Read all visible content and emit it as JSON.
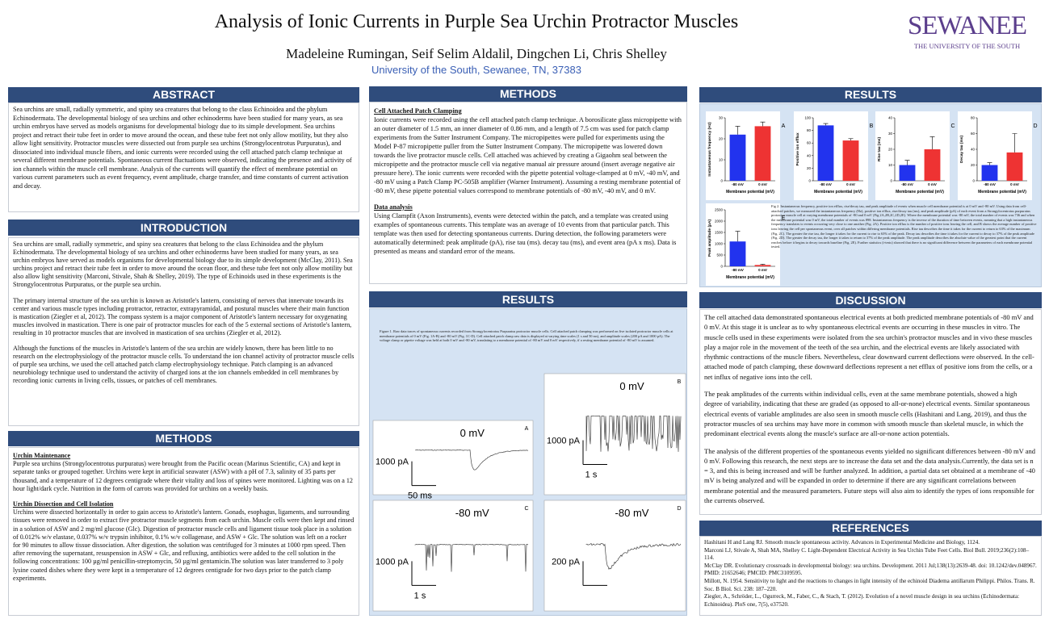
{
  "header": {
    "title": "Analysis of Ionic Currents in Purple Sea Urchin Protractor Muscles",
    "authors": "Madeleine Rumingan, Seif Selim Aldalil, Dingchen Li, Chris Shelley",
    "affiliation": "University of the South, Sewanee, TN, 37383",
    "logo": "SEWANEE",
    "logo_subtitle": "THE UNIVERSITY OF THE SOUTH"
  },
  "abstract": {
    "heading": "ABSTRACT",
    "text": "Sea urchins are small, radially symmetric, and spiny sea creatures that belong to the class Echinoidea and the phylum Echinodermata. The developmental biology of sea urchins and other echinoderms have been studied for many years, as sea urchin embryos have served as models organisms for developmental biology due to its simple development. Sea urchins project and retract their tube feet in order to move around the ocean, and these tube feet not only allow motility, but they also allow light sensitivity. Protractor muscles were dissected out from purple sea urchins (Strongylocentrotus Purpuratus), and dissociated into individual muscle fibers, and ionic currents were recorded using the cell attached patch clamp technique at several different membrane potentials. Spontaneous current fluctuations were observed, indicating the presence and activity of ion channels within the muscle cell membrane. Analysis of the currents will quantify the effect of membrane potential on various current parameters such as event frequency, event amplitude, charge transfer, and time constants of current activation and decay."
  },
  "introduction": {
    "heading": "INTRODUCTION",
    "paragraphs": [
      "Sea urchins are small, radially symmetric, and spiny sea creatures that belong to the class Echinoidea and the phylum Echinodermata. The developmental biology of sea urchins and other echinoderms have been studied for many years, as sea urchin embryos have served as models organisms for developmental biology due to its simple development (McClay, 2011). Sea urchins project and retract their tube feet in order to move around the ocean floor, and these tube feet not only allow motility but also allow light sensitivity (Marconi, Stivale, Shah & Shelley, 2019). The type of Echinoids used in these experiments is the Strongylocentrotus Purpuratus, or the purple sea urchin.",
      "The primary internal structure of the sea urchin is known as Aristotle's lantern, consisting of nerves that innervate towards its center and various muscle types including protractor, retractor, extrapyramidal, and postural muscles where their main function is mastication (Ziegler et al, 2012). The compass system is a major component of Aristotle's lantern necessary for oxygenating muscles involved in mastication. There is one pair of protractor muscles for each of the 5 external sections of Aristotle's lantern, resulting in 10 protractor muscles that are involved in mastication of sea urchins (Ziegler et al, 2012).",
      "Although the functions of the muscles in Aristotle's lantern of the sea urchin are widely known, there has been little to no research on the electrophysiology of the protractor muscle cells. To understand the ion channel activity of protractor muscle cells of purple sea urchins, we used the cell attached patch clamp electrophysiology technique. Patch clamping is an advanced neurobiology technique used to understand the activity of charged ions at the ion channels embedded in cell membranes by recording ionic currents in living cells, tissues, or patches of cell membranes."
    ]
  },
  "methods_left": {
    "heading": "METHODS",
    "sections": [
      {
        "title": "Urchin Maintenance",
        "text": "Purple sea urchins (Strongylocentrotus purpuratus) were brought from the Pacific ocean (Marinus Scientific, CA) and kept in separate tanks or grouped together. Urchins were kept in artificial seawater (ASW) with a pH of 7.3, salinity of 35 parts per thousand, and a temperature of 12 degrees centigrade where their vitality and loss of spines were monitored. Lighting was on a 12 hour light/dark cycle. Nutrition in the form of carrots was provided for urchins on a weekly basis."
      },
      {
        "title": "Urchin Dissection and Cell Isolation",
        "text": "Urchins were dissected horizontally in order to gain access to Aristotle's lantern. Gonads, esophagus, ligaments, and surrounding tissues were removed in order to extract five protractor muscle segments from each urchin. Muscle cells were then kept and rinsed in a solution of ASW and 2 mg/ml glucose (Glc). Digestion of protractor muscle cells and ligament tissue took place in a solution of 0.012% w/v elastase, 0.037% w/v trypsin inhibitor, 0.1% w/v collagenase, and ASW + Glc. The solution was left on a rocker for 90 minutes to allow tissue dissociation. After digestion, the solution was centrifuged for 3 minutes at 1000 rpm speed. Then after removing the supernatant, resuspension in ASW + Glc, and refluxing, antibiotics were added to the cell solution in the following concentrations: 100 µg/ml penicillin-streptomycin, 50 µg/ml gentamicin.The solution was later transferred to 3 poly lysine coated dishes where they were kept in a temperature of 12 degrees centigrade for two days prior to the patch clamp experiments."
      }
    ]
  },
  "methods_middle": {
    "heading": "METHODS",
    "sections": [
      {
        "title": "Cell Attached Patch Clamping",
        "text": "Ionic currents were recorded using the cell attached patch clamp technique. A borosilicate glass micropipette with an outer diameter of 1.5 mm, an inner diameter of 0.86 mm, and a length of 7.5 cm was used for patch clamp experiments from the Sutter Instrument Company. The micropipettes were pulled for experiments using the Model P-87 micropipette puller from the Sutter Instrument Company. The micropipette was lowered down towards the live protractor muscle cells. Cell attached was achieved by creating a Gigaohm seal between the micropipette and the protractor muscle cell via negative manual air pressure around (insert average negative air pressure here). The ionic currents were recorded with the pipette potential voltage-clamped at 0 mV, -40 mV, and -80 mV using a Patch Clamp PC-505B amplifier (Warner Instrument). Assuming a resting membrane potential of -80 mV, these pipette potential values correspond to membrane potentials of -80 mV, -40 mV, and 0 mV."
      },
      {
        "title": "Data analysis",
        "text": "Using Clampfit (Axon Instruments), events were detected within the patch, and a template was created using examples of spontaneous currents. This template was an average of 10 events from that particular patch. This template was then used for detecting spontaneous currents. During detection, the following parameters were automatically determined: peak amplitude (pA), rise tau (ms). decay tau (ms), and event area (pA x ms). Data is presented as means and standard error of the means."
      }
    ]
  },
  "results_traces": {
    "heading": "RESULTS",
    "caption": "Figure 1. Raw data traces of spontaneous currents recorded from Strongylocentrotus Purpuratus protractor muscle cells. Cell attached patch clamping was performed on five isolated protractor muscle cells at membrane potentials of 0 mV (Fig. 1A-B) and -80 mV (Fig. 1C-D). Cell attached patch clamp raw data is displayed at varying time scales (1 s and 50 ms), and amplitude scales (200 pA and 1000 pA). The voltage clamp or pipette voltage was held at both 0 mV and -80 mV, translating to a membrane potential of -80 mV and 0 mV respectively, if a resting membrane potential of -80 mV is assumed.",
    "panels": [
      {
        "label": "A",
        "voltage": "0 mV",
        "amplitude_scale": "1000 pA",
        "time_scale": "50 ms"
      },
      {
        "label": "B",
        "voltage": "0 mV",
        "amplitude_scale": "1000 pA",
        "time_scale": "1 s"
      },
      {
        "label": "C",
        "voltage": "-80 mV",
        "amplitude_scale": "1000 pA",
        "time_scale": "1 s"
      },
      {
        "label": "D",
        "voltage": "-80 mV",
        "amplitude_scale": "200 pA"
      }
    ]
  },
  "results_bars": {
    "heading": "RESULTS",
    "caption": "Fig 2. Instantaneous frequency, positive ion efflux, rise/decay tau, and peak amplitude of events when muscle cell membrane potential is at 0 mV and -80 mV. Using data from cell-attached patches, we measured the instantaneous frequency (Hz), positive ion efflux, rise/decay tau (ms), and peak amplitude (pA) of each event from a Strongylocentrotus purpuratus protractor muscle cell at varying membrane potentials of -80 and 0 mV (Fig 2A,2B,2C,2D,2E). Where the membrane potential was -80 mV, the total number of events was 736 and when the membrane potential was 0 mV, the total number of events was 898. Instantaneous frequency is the inverse of the duration of time between events, meaning that a high instantaneous frequency translates to events occurring very close to one another (Fig. 2A). Positive ion efflux is the number of positive ions leaving the cell, and B shows the average number of positive ions leaving the cell per spontaneous event, over all patches within differing membrane potentials. Rise tau describes the time it takes for the current to return to 63% of the maximum (Fig. 2C). The greater the rise tau, the longer it takes for the current to rise to 63% of the peak. Decay tau describes the time it takes for the current to decay to 37% of the peak amplitude (Fig. 2D). The greater the decay tau, the longer it takes to return to 37% of the peak amplitude. The peak amplitude describes the absolute value of the greatest point that the current reaches before it begins to decay towards baseline (Fig. 2E). Further statistics (t-tests) showed that there is no significant difference between the parameters of each membrane potential tested."
  },
  "chart_data": [
    {
      "type": "bar",
      "label": "A",
      "y_label": "Instantaneous frequency (Hz)",
      "x_label": "Membrane potential (mV)",
      "categories": [
        "-80 mV",
        "0 mV"
      ],
      "values": [
        22,
        26
      ],
      "errors": [
        4,
        2
      ],
      "colors": [
        "#2233ee",
        "#ee3333"
      ],
      "ylim": [
        0,
        30
      ],
      "yticks": [
        0,
        10,
        20,
        30
      ]
    },
    {
      "type": "bar",
      "label": "B",
      "y_label": "Positive ion efflux",
      "x_label": "Membrane potential (mV)",
      "categories": [
        "-80 mV",
        "0 mV"
      ],
      "values": [
        88,
        64
      ],
      "errors": [
        3,
        3
      ],
      "colors": [
        "#2233ee",
        "#ee3333"
      ],
      "ylim": [
        0,
        100
      ],
      "yticks": [
        0,
        20,
        40,
        60,
        80,
        100
      ]
    },
    {
      "type": "bar",
      "label": "C",
      "y_label": "Rise tau (ms)",
      "x_label": "Membrane potential (mV)",
      "categories": [
        "-80 mV",
        "0 mV"
      ],
      "values": [
        10,
        20
      ],
      "errors": [
        3,
        8
      ],
      "colors": [
        "#2233ee",
        "#ee3333"
      ],
      "ylim": [
        0,
        40
      ],
      "yticks": [
        0,
        10,
        20,
        30,
        40
      ]
    },
    {
      "type": "bar",
      "label": "D",
      "y_label": "Decay tau (ms)",
      "x_label": "Membrane potential (mV)",
      "categories": [
        "-80 mV",
        "0 mV"
      ],
      "values": [
        20,
        36
      ],
      "errors": [
        3,
        24
      ],
      "colors": [
        "#2233ee",
        "#ee3333"
      ],
      "ylim": [
        0,
        80
      ],
      "yticks": [
        0,
        20,
        40,
        60,
        80
      ]
    },
    {
      "type": "bar",
      "label": "E",
      "y_label": "Peak amplitude (pA)",
      "x_label": "Membrane potential (mV)",
      "categories": [
        "-80 mV",
        "0 mV"
      ],
      "values": [
        1100,
        60
      ],
      "errors": [
        450,
        30
      ],
      "colors": [
        "#2233ee",
        "#ee3333"
      ],
      "ylim": [
        0,
        2500
      ],
      "yticks": [
        0,
        500,
        1000,
        1500,
        2000,
        2500
      ]
    }
  ],
  "discussion": {
    "heading": "DISCUSSION",
    "paragraphs": [
      "The cell attached data demonstrated spontaneous electrical events at both predicted membrane potentials of -80 mV and 0 mV. At this stage it is unclear as to why spontaneous electrical events are occurring in these muscles in vitro. The muscle cells used in these experiments were isolated from the sea urchin's protractor muscles and in vivo these muscles play a major role in the movement of the teeth of the sea urchin, and the electrical events are likely associated with rhythmic contractions of the muscle fibers. Nevertheless, clear downward current deflections were observed. In the cell-attached mode of patch clamping, these downward deflections represent a net efflux of positive ions from the cells, or a net influx of negative ions into the cell.",
      "The peak amplitudes of the currents within individual cells, even at the same membrane potentials, showed a high degree of variability, indicating that these are graded (as opposed to all-or-none) electrical events. Similar spontaneous electrical events of variable amplitudes are also seen in smooth muscle cells (Hashitani and Lang, 2019), and thus the protractor muscles of sea urchins may have more in common with smooth muscle than skeletal muscle, in which the predominant electrical events along the muscle's surface are all-or-none action potentials.",
      "The analysis of the different properties of the spontaneous events yielded no significant differences between -80 mV and 0 mV. Following this research, the next steps are to increase the data set and the data analysis.Currently, the data set is n = 3, and this is being increased and will be further analyzed. In addition, a partial data set obtained at a membrane of -40 mV is being analyzed and will be expanded in order to determine if there are any significant correlations between membrane potential and the measured parameters. Future steps will also aim to identify the types of ions responsible for the currents observed."
    ]
  },
  "references": {
    "heading": "REFERENCES",
    "items": [
      "Hashitani H and Lang RJ. Smooth muscle spontaneous activity. Advances in Experimental Medicine and Biology, 1124.",
      "Marconi LJ, Stivale A, Shah MA, Shelley C. Light-Dependent Electrical Activity in Sea Urchin Tube Feet Cells. Biol Bull. 2019;236(2):108–114.",
      "McClay DR. Evolutionary crossroads in developmental biology: sea urchins. Development. 2011 Jul;138(13):2639-48. doi: 10.1242/dev.048967. PMID: 21652646; PMCID: PMC3109595.",
      "Millott, N. 1954. Sensitivity to light and the reactions to changes in light intensity of the echinoid Diadema antillarum Philippi. Philos. Trans. R. Soc. B Biol. Sci. 238: 187–220.",
      "Ziegler, A., Schröder, L., Ogurreck, M., Faber, C., & Stach, T. (2012). Evolution of a novel muscle design in sea urchins (Echinodermata: Echinoidea). PloS one, 7(5), e37520."
    ]
  }
}
